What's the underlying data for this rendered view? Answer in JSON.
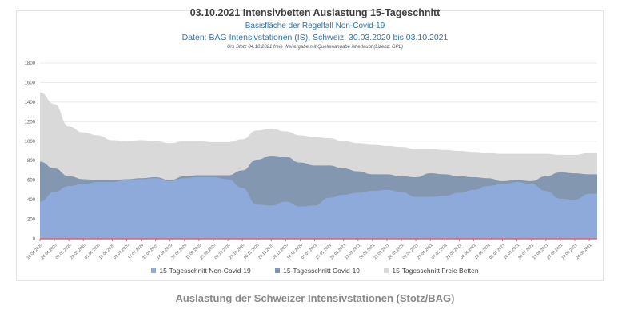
{
  "header": {
    "title": "03.10.2021 Intensivbetten Auslastung 15-Tageschnitt",
    "subtitle1": "Basisfläche der Regelfall Non-Covid-19",
    "subtitle2": "Daten: BAG Intensivstationen (IS), Schweiz, 30.03.2020 bis 03.10.2021",
    "note": "Urs Stotz 04.10.2021 freie Weitergabe mit Quellenangabe ist erlaubt (Lizenz: GPL)"
  },
  "caption": "Auslastung der Schweizer Intensivstationen (Stotz/BAG)",
  "colors": {
    "non_covid": "#8eaadb",
    "covid": "#8497b0",
    "free": "#d9d9d9",
    "baseline": "#e06070",
    "grid": "#ebebeb"
  },
  "chart_data": {
    "type": "area",
    "stacked": true,
    "title": "03.10.2021 Intensivbetten Auslastung 15-Tageschnitt",
    "xlabel": "",
    "ylabel": "",
    "ylim": [
      0,
      1800
    ],
    "yticks": [
      0,
      200,
      400,
      600,
      800,
      1000,
      1200,
      1400,
      1600,
      1800
    ],
    "grid": true,
    "legend_position": "bottom",
    "categories": [
      "10.04.2020",
      "24.04.2020",
      "08.05.2020",
      "22.05.2020",
      "05.06.2020",
      "19.06.2020",
      "03.07.2020",
      "17.07.2020",
      "31.07.2020",
      "14.08.2020",
      "28.08.2020",
      "11.09.2020",
      "25.09.2020",
      "09.10.2020",
      "23.10.2020",
      "06.11.2020",
      "20.11.2020",
      "04.12.2020",
      "18.12.2020",
      "01.01.2021",
      "15.01.2021",
      "29.01.2021",
      "12.02.2021",
      "26.02.2021",
      "12.03.2021",
      "26.03.2021",
      "09.04.2021",
      "23.04.2021",
      "07.05.2021",
      "21.05.2021",
      "04.06.2021",
      "18.06.2021",
      "02.07.2021",
      "16.07.2021",
      "30.07.2021",
      "13.08.2021",
      "27.08.2021",
      "10.09.2021",
      "24.09.2021"
    ],
    "series": [
      {
        "name": "15-Tagesschnitt Non-Covid-19",
        "values": [
          380,
          480,
          540,
          560,
          580,
          580,
          600,
          610,
          620,
          590,
          620,
          630,
          630,
          610,
          520,
          350,
          340,
          380,
          330,
          340,
          420,
          450,
          470,
          490,
          500,
          480,
          430,
          430,
          440,
          470,
          500,
          540,
          560,
          580,
          560,
          490,
          410,
          400,
          460
        ]
      },
      {
        "name": "15-Tagesschnitt Covid-19",
        "values": [
          410,
          240,
          100,
          50,
          20,
          20,
          10,
          10,
          10,
          10,
          20,
          20,
          20,
          40,
          180,
          460,
          510,
          460,
          450,
          410,
          330,
          270,
          220,
          170,
          160,
          160,
          200,
          240,
          220,
          170,
          130,
          80,
          30,
          20,
          30,
          150,
          270,
          270,
          200
        ]
      },
      {
        "name": "15-Tagesschnitt Freie Betten",
        "values": [
          710,
          660,
          510,
          480,
          460,
          410,
          390,
          390,
          370,
          380,
          360,
          350,
          340,
          340,
          320,
          300,
          280,
          260,
          280,
          290,
          280,
          280,
          290,
          310,
          290,
          300,
          290,
          250,
          250,
          260,
          260,
          260,
          280,
          270,
          280,
          230,
          180,
          190,
          220
        ]
      }
    ]
  }
}
